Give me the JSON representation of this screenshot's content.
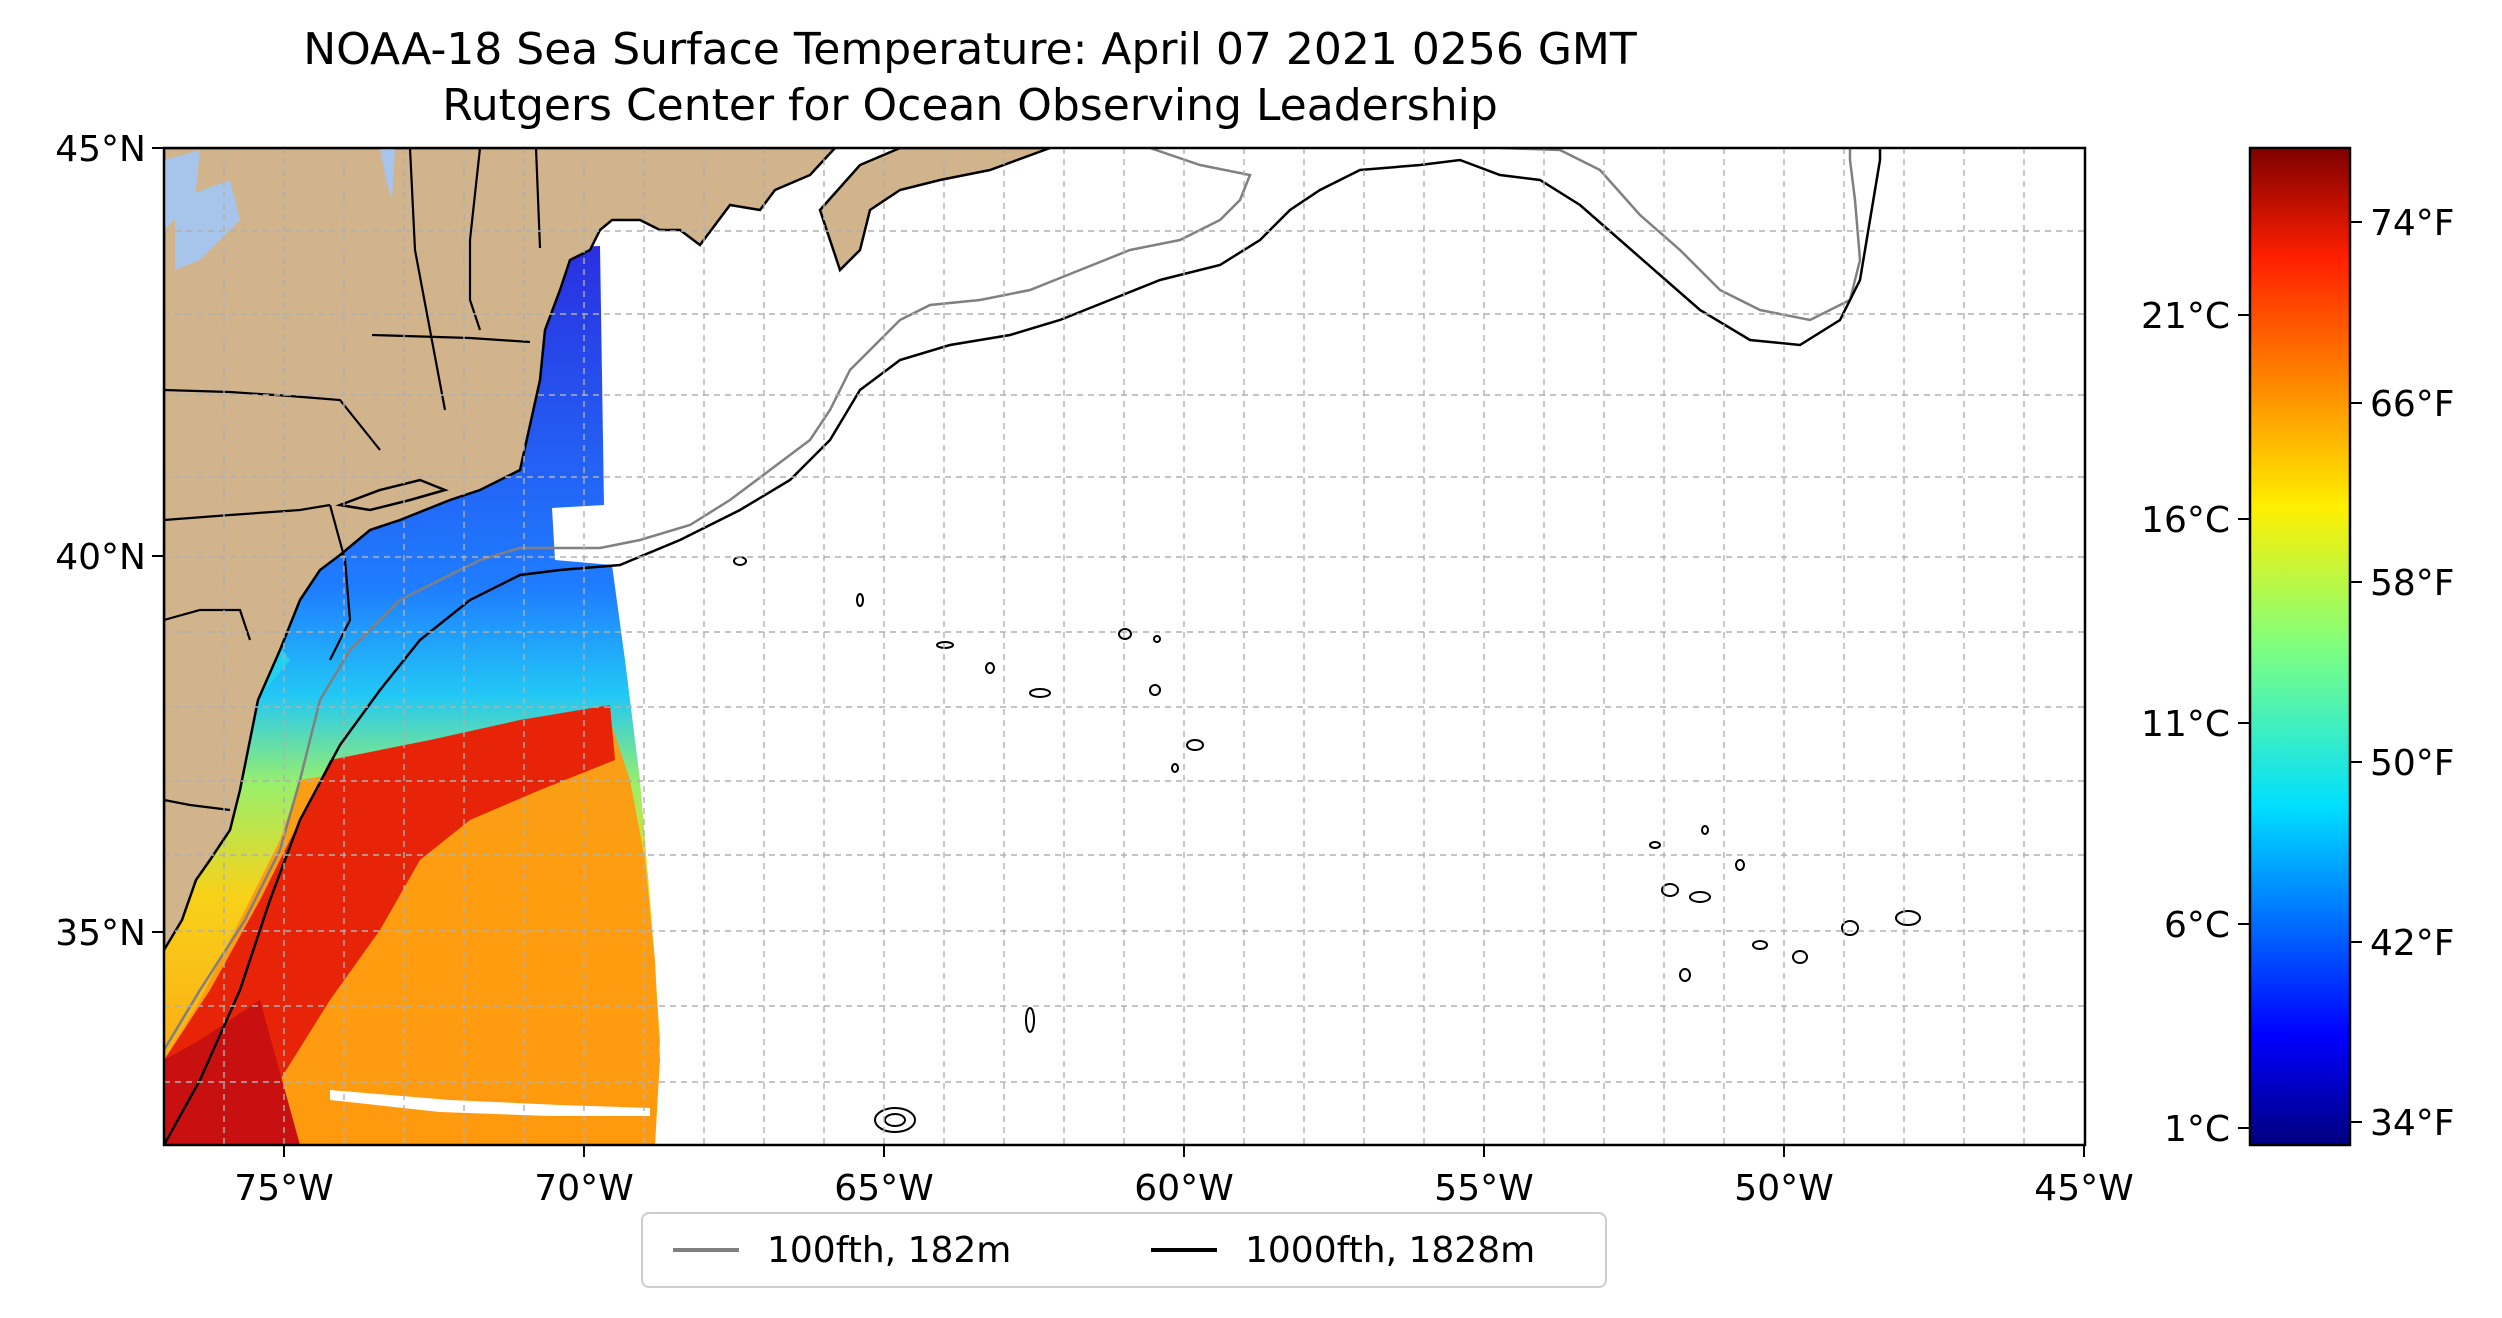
{
  "title": {
    "line1": "NOAA-18 Sea Surface Temperature: April 07 2021 0256 GMT",
    "line2": "Rutgers Center for Ocean Observing Leadership"
  },
  "map": {
    "lon_range": [
      -77,
      -45
    ],
    "lat_range": [
      32.2,
      45
    ],
    "x_ticks": [
      "75°W",
      "70°W",
      "65°W",
      "60°W",
      "55°W",
      "50°W",
      "45°W"
    ],
    "y_ticks": [
      "35°N",
      "40°N",
      "45°N"
    ],
    "gridlines": true,
    "land_color": "#d2b48c",
    "lake_color": "#a7c4ea"
  },
  "colorbar": {
    "colormap": "jet",
    "celsius_ticks": [
      "1°C",
      "6°C",
      "11°C",
      "16°C",
      "21°C"
    ],
    "fahrenheit_ticks": [
      "34°F",
      "42°F",
      "50°F",
      "58°F",
      "66°F",
      "74°F"
    ]
  },
  "legend": {
    "placement": "bottom-center",
    "items": [
      {
        "label": "100fth, 182m",
        "color": "#808080"
      },
      {
        "label": "1000fth, 1828m",
        "color": "#000000"
      }
    ]
  }
}
